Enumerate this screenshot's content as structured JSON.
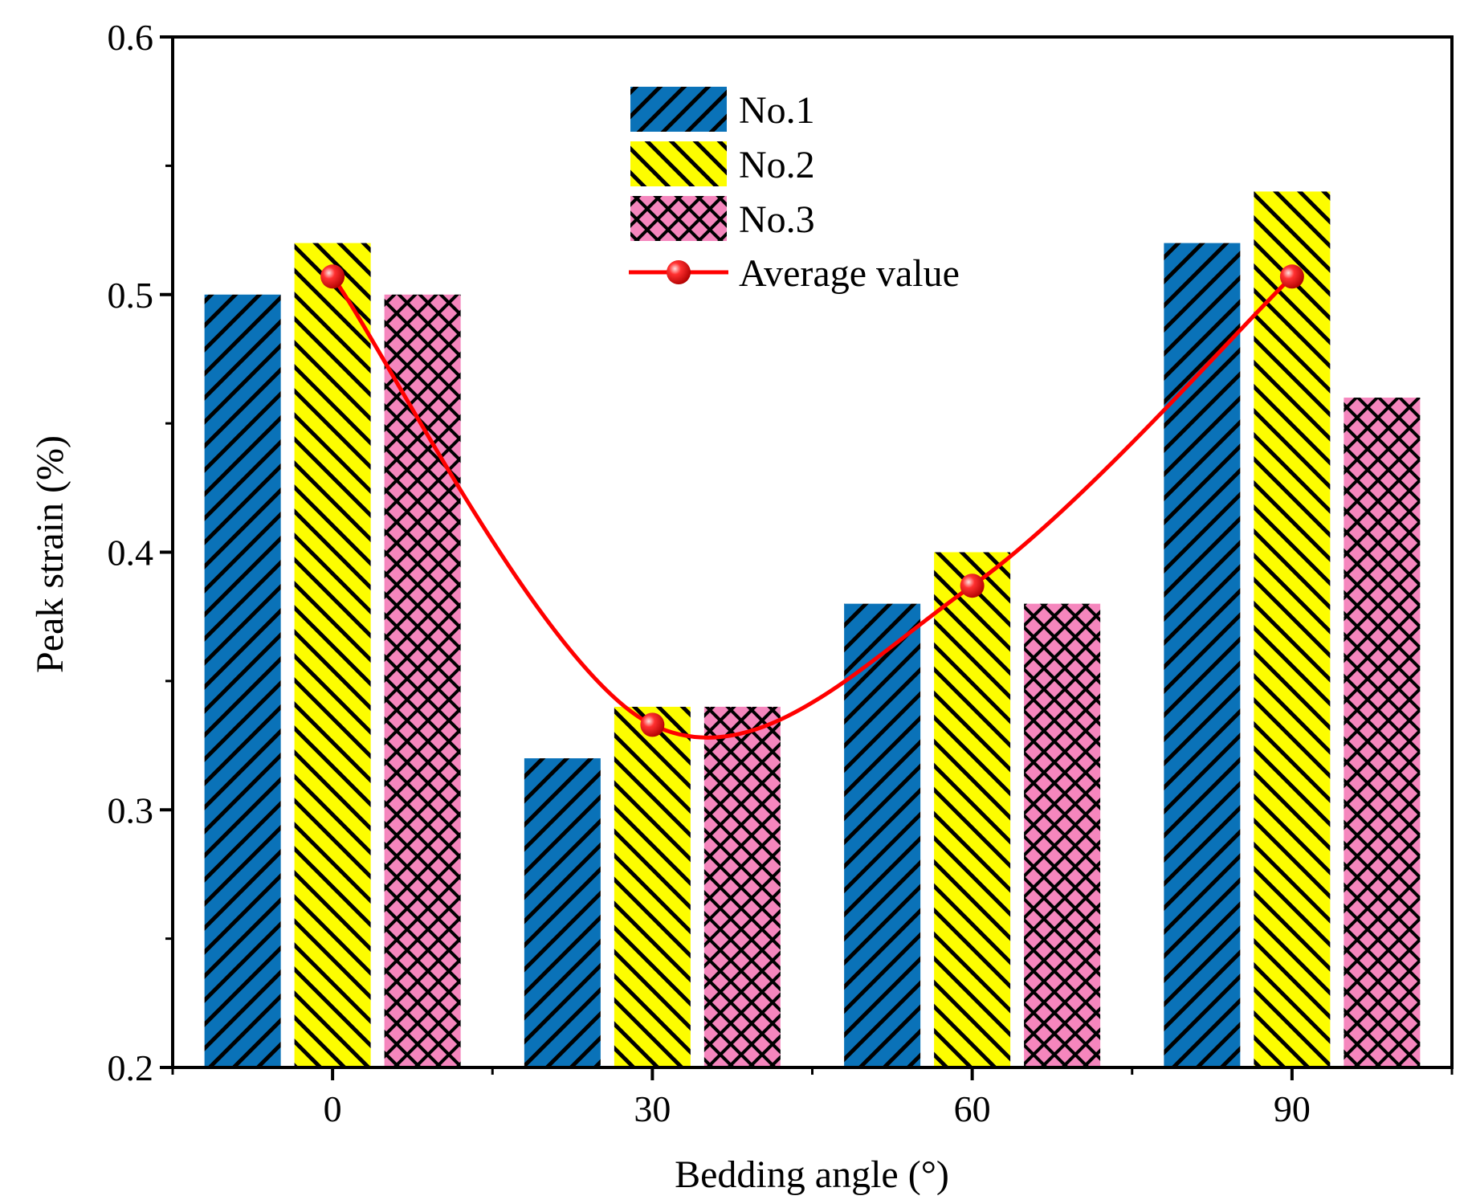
{
  "chart_data": {
    "type": "bar",
    "title": "",
    "xlabel": "Bedding angle (°)",
    "ylabel": "Peak strain (%)",
    "categories": [
      "0",
      "30",
      "60",
      "90"
    ],
    "ylim": [
      0.2,
      0.6
    ],
    "y_ticks": [
      "0.2",
      "0.3",
      "0.4",
      "0.5",
      "0.6"
    ],
    "series": [
      {
        "name": "No.1",
        "values": [
          0.5,
          0.32,
          0.38,
          0.52
        ],
        "color": "#0a72b8",
        "pattern": "diag-up"
      },
      {
        "name": "No.2",
        "values": [
          0.52,
          0.34,
          0.4,
          0.54
        ],
        "color": "#fdfd00",
        "pattern": "diag-down"
      },
      {
        "name": "No.3",
        "values": [
          0.5,
          0.34,
          0.38,
          0.46
        ],
        "color": "#f586bd",
        "pattern": "cross"
      }
    ],
    "line_series": {
      "name": "Average value",
      "values": [
        0.507,
        0.333,
        0.387,
        0.507
      ],
      "color": "#ff0000"
    },
    "legend_position": "top-center",
    "grid": false
  }
}
